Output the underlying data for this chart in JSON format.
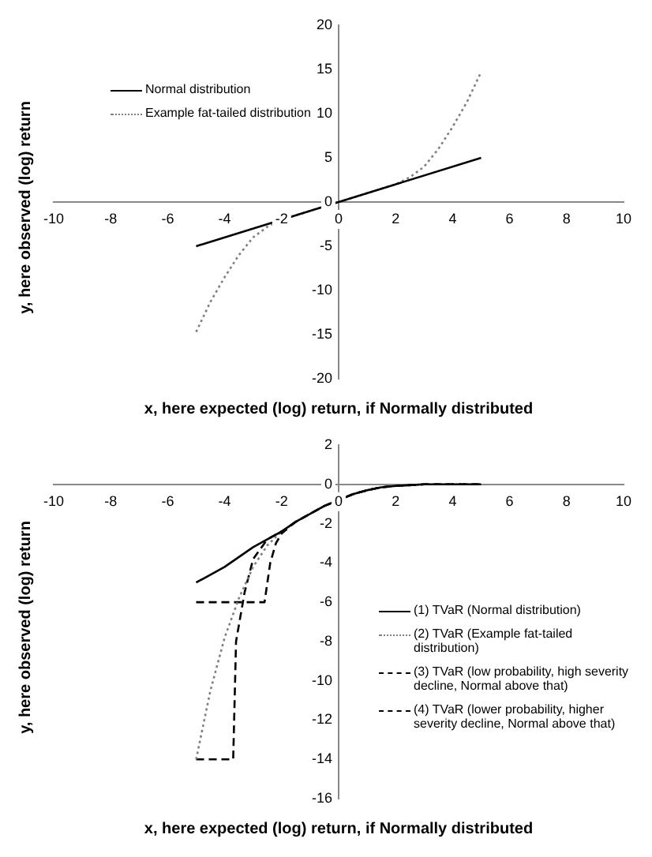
{
  "chart_data": [
    {
      "type": "line",
      "xlabel": "x, here expected (log) return, if Normally distributed",
      "ylabel": "y, here observed (log) return",
      "xlim": [
        -10,
        10
      ],
      "xticks": [
        -10,
        -8,
        -6,
        -4,
        -2,
        0,
        2,
        4,
        6,
        8,
        10
      ],
      "ylim": [
        -20,
        20
      ],
      "yticks": [
        -20,
        -15,
        -10,
        -5,
        0,
        5,
        10,
        15,
        20
      ],
      "grid": false,
      "legend": "top left",
      "marker": "none",
      "series": [
        {
          "name": "Normal distribution",
          "color": "#000000",
          "line_style": "solid",
          "x": [
            -5,
            5
          ],
          "values": [
            -5,
            5
          ]
        },
        {
          "name": "Example fat-tailed distribution",
          "color": "#808080",
          "line_style": "dotted",
          "x": [
            -5,
            -4.5,
            -4,
            -3.5,
            -3,
            -2.5,
            -2,
            -1,
            0,
            1,
            2,
            2.5,
            3,
            3.5,
            4,
            4.5,
            5
          ],
          "values": [
            -14.7,
            -11.3,
            -8.5,
            -6,
            -4,
            -2.8,
            -2,
            -1,
            0,
            1,
            2,
            2.8,
            4,
            6,
            8.5,
            11.3,
            14.7
          ]
        }
      ]
    },
    {
      "type": "line",
      "xlabel": "x, here expected (log) return, if Normally distributed",
      "ylabel": "y, here observed (log) return",
      "xlim": [
        -10,
        10
      ],
      "xticks": [
        -10,
        -8,
        -6,
        -4,
        -2,
        0,
        2,
        4,
        6,
        8,
        10
      ],
      "ylim": [
        -16,
        2
      ],
      "yticks": [
        -16,
        -14,
        -12,
        -10,
        -8,
        -6,
        -4,
        -2,
        0,
        2
      ],
      "grid": false,
      "legend": "right",
      "marker": "none",
      "series": [
        {
          "name": "(1) TVaR (Normal distribution)",
          "color": "#000000",
          "line_style": "solid",
          "x": [
            -5,
            -4.5,
            -4,
            -3.5,
            -3,
            -2.5,
            -2,
            -1.5,
            -1,
            -0.5,
            0,
            0.5,
            1,
            1.5,
            2,
            3,
            4,
            5
          ],
          "values": [
            -5,
            -4.6,
            -4.2,
            -3.7,
            -3.2,
            -2.8,
            -2.4,
            -1.9,
            -1.5,
            -1.1,
            -0.8,
            -0.5,
            -0.3,
            -0.15,
            -0.08,
            0,
            0,
            0
          ]
        },
        {
          "name": "(2) TVaR (Example fat-tailed distribution)",
          "color": "#808080",
          "line_style": "dotted",
          "x": [
            -5,
            -4.5,
            -4,
            -3.5,
            -3,
            -2.5,
            -2,
            -1.5,
            -1,
            -0.5,
            0,
            0.5,
            1,
            1.5,
            2,
            3,
            4,
            5
          ],
          "values": [
            -14,
            -10.5,
            -7.8,
            -5.8,
            -4.2,
            -3.1,
            -2.4,
            -1.9,
            -1.5,
            -1.1,
            -0.8,
            -0.5,
            -0.3,
            -0.15,
            -0.08,
            0,
            0,
            0
          ]
        },
        {
          "name": "(3) TVaR (low probability, high severity decline, Normal above that)",
          "color": "#000000",
          "line_style": "dashed",
          "x": [
            -5,
            -2.6,
            -2.4,
            -2.2,
            -2,
            -1.5,
            -1,
            -0.5,
            0,
            0.5,
            1,
            1.5,
            2,
            3,
            4,
            5
          ],
          "values": [
            -6,
            -6,
            -4,
            -3,
            -2.5,
            -1.9,
            -1.5,
            -1.1,
            -0.8,
            -0.5,
            -0.3,
            -0.15,
            -0.08,
            0,
            0,
            0
          ]
        },
        {
          "name": "(4) TVaR (lower probability, higher severity decline, Normal above that)",
          "color": "#000000",
          "line_style": "dashed",
          "x": [
            -5,
            -3.7,
            -3.6,
            -3.3,
            -3,
            -2.5,
            -2,
            -1.5,
            -1,
            -0.5,
            0,
            0.5,
            1,
            1.5,
            2,
            3,
            4,
            5
          ],
          "values": [
            -14,
            -14,
            -8,
            -5.5,
            -3.8,
            -2.8,
            -2.4,
            -1.9,
            -1.5,
            -1.1,
            -0.8,
            -0.5,
            -0.3,
            -0.15,
            -0.08,
            0,
            0,
            0
          ]
        }
      ]
    }
  ]
}
